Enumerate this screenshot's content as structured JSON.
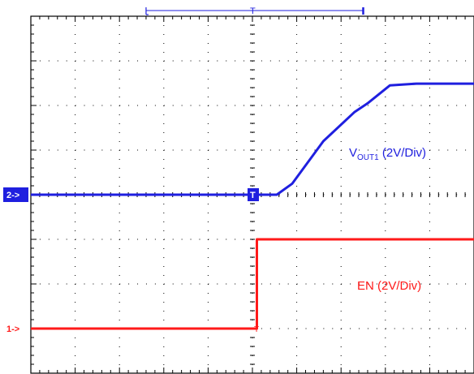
{
  "chart_data": {
    "type": "line",
    "x_divisions": 10,
    "y_divisions": 8,
    "grid": true,
    "series": [
      {
        "name": "VOUT1 (2V/Div)",
        "label_main": "V",
        "label_sub": "OUT1",
        "label_rest": " (2V/Div)",
        "marker": "2->",
        "color": "#1f1fdf",
        "volts_per_div": 2,
        "ground_div": 4,
        "points": [
          [
            0,
            0
          ],
          [
            5.55,
            0
          ],
          [
            5.9,
            0.25
          ],
          [
            6.6,
            1.2
          ],
          [
            7.3,
            1.85
          ],
          [
            7.6,
            2.05
          ],
          [
            8.1,
            2.45
          ],
          [
            8.7,
            2.49
          ],
          [
            10,
            2.49
          ]
        ]
      },
      {
        "name": "EN (2V/Div)",
        "label_rest": "EN (2V/Div)",
        "marker": "1->",
        "color": "#ff1a1a",
        "volts_per_div": 2,
        "ground_div": 1,
        "points": [
          [
            0,
            0
          ],
          [
            5.1,
            0
          ],
          [
            5.1,
            2.0
          ],
          [
            10,
            2.0
          ]
        ]
      }
    ],
    "trigger": {
      "position_div": 5,
      "marker": "T"
    },
    "top_bracket": {
      "start_div": 2.6,
      "end_div": 7.5
    }
  }
}
